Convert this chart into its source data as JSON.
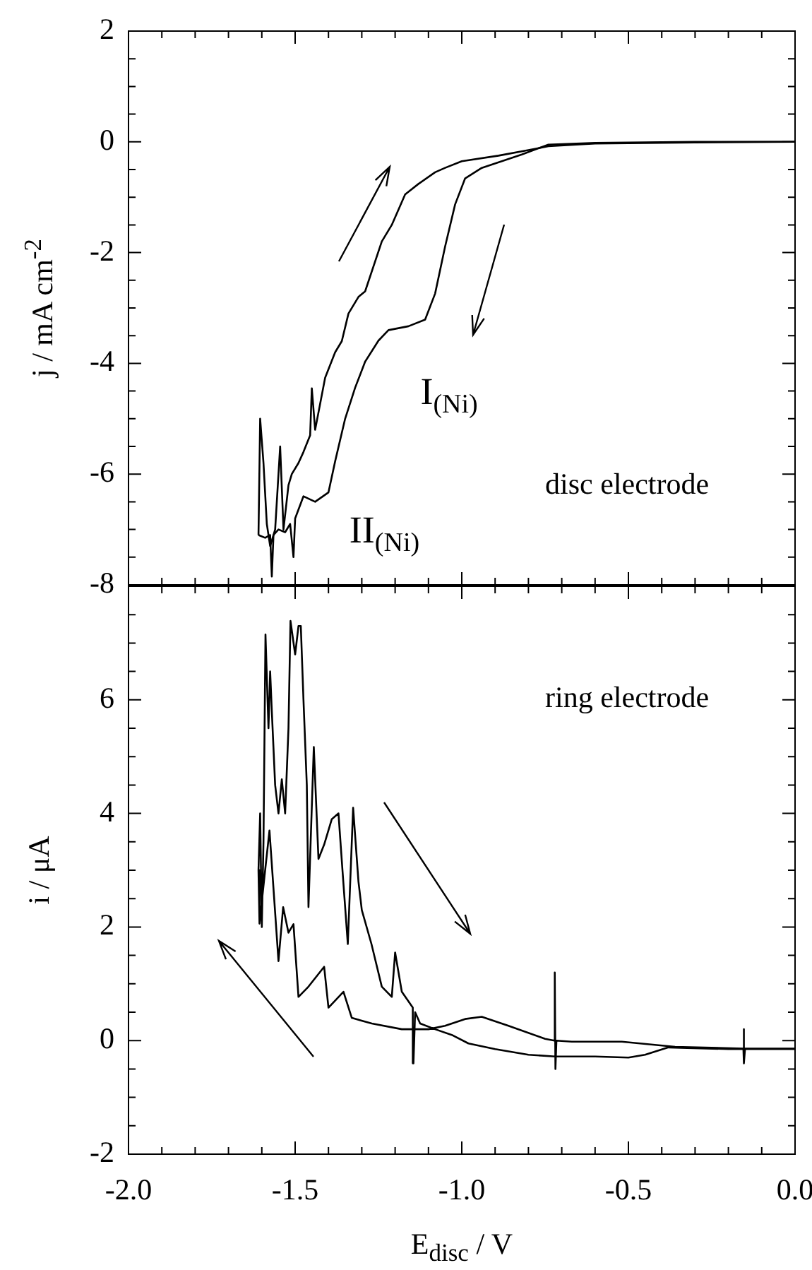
{
  "chart_data": [
    {
      "type": "line",
      "ylabel": "j / mA cm$^{-2}$",
      "tick_labels": "y",
      "xlim": [
        -2,
        0
      ],
      "ylim": [
        -8,
        2
      ],
      "yticks": [
        -8,
        {
          "value": -7.5,
          "label": null
        },
        {
          "value": -7,
          "label": null
        },
        {
          "value": -6.5,
          "label": null
        },
        -6,
        {
          "value": -5.5,
          "label": null
        },
        {
          "value": -5,
          "label": null
        },
        {
          "value": -4.5,
          "label": null
        },
        -4,
        {
          "value": -3.5,
          "label": null
        },
        {
          "value": -3,
          "label": null
        },
        {
          "value": -2.5,
          "label": null
        },
        -2,
        {
          "value": -1.5,
          "label": null
        },
        {
          "value": -1,
          "label": null
        },
        {
          "value": -0.5,
          "label": null
        },
        0,
        {
          "value": 0.5,
          "label": null
        },
        {
          "value": 1,
          "label": null
        },
        {
          "value": 1.5,
          "label": null
        },
        2
      ],
      "annotations": [
        "I$_{(Ni)}$",
        "II$_{(Ni)}$",
        "disc electrode"
      ],
      "series": [
        {
          "color": "#000000",
          "x": [
            0,
            -0.3,
            -0.6,
            -0.74,
            -0.82,
            -0.94,
            -0.99,
            -1.02,
            -1.05,
            -1.08,
            -1.11,
            -1.16,
            -1.22,
            -1.25,
            -1.29,
            -1.32,
            -1.35,
            -1.38,
            -1.4,
            -1.44,
            -1.475,
            -1.5,
            -1.505,
            -1.515,
            -1.53,
            -1.55,
            -1.565,
            -1.57,
            -1.575,
            -1.59,
            -1.61
          ],
          "values": [
            0,
            0,
            -0.02,
            -0.05,
            -0.23,
            -0.47,
            -0.66,
            -1.13,
            -1.89,
            -2.74,
            -3.21,
            -3.33,
            -3.4,
            -3.59,
            -3.97,
            -4.44,
            -5,
            -5.77,
            -6.33,
            -6.5,
            -6.4,
            -6.8,
            -7.5,
            -6.9,
            -7.05,
            -7,
            -7.1,
            -7.85,
            -7.1,
            -7.15,
            -7.1
          ]
        },
        {
          "color": "#000000",
          "x": [
            -1.61,
            -1.605,
            -1.595,
            -1.585,
            -1.575,
            -1.56,
            -1.545,
            -1.535,
            -1.52,
            -1.51,
            -1.49,
            -1.475,
            -1.455,
            -1.45,
            -1.44,
            -1.41,
            -1.38,
            -1.36,
            -1.34,
            -1.31,
            -1.29,
            -1.24,
            -1.21,
            -1.17,
            -1.13,
            -1.08,
            -1.05,
            -1,
            -0.89,
            -0.8,
            -0.74,
            -0.6,
            -0.3,
            0
          ],
          "values": [
            -7.1,
            -5,
            -5.8,
            -6.9,
            -7.3,
            -7,
            -5.5,
            -7,
            -6.2,
            -6,
            -5.8,
            -5.6,
            -5.3,
            -4.45,
            -5.2,
            -4.26,
            -3.8,
            -3.6,
            -3.1,
            -2.8,
            -2.7,
            -1.8,
            -1.5,
            -0.95,
            -0.76,
            -0.55,
            -0.47,
            -0.35,
            -0.25,
            -0.15,
            -0.08,
            -0.03,
            -0.01,
            0
          ]
        }
      ]
    },
    {
      "type": "line",
      "xlabel": "E$_{disc}$ / V",
      "ylabel": "i / μA",
      "xlim": [
        -2,
        0
      ],
      "xticks": [
        {
          "value": -2,
          "label": "-2.0"
        },
        {
          "value": -1.9,
          "label": null
        },
        {
          "value": -1.8,
          "label": null
        },
        {
          "value": -1.7,
          "label": null
        },
        {
          "value": -1.6,
          "label": null
        },
        {
          "value": -1.5,
          "label": "-1.5"
        },
        {
          "value": -1.4,
          "label": null
        },
        {
          "value": -1.3,
          "label": null
        },
        {
          "value": -1.2,
          "label": null
        },
        {
          "value": -1.1,
          "label": null
        },
        {
          "value": -1,
          "label": "-1.0"
        },
        {
          "value": -0.9,
          "label": null
        },
        {
          "value": -0.8,
          "label": null
        },
        {
          "value": -0.7,
          "label": null
        },
        {
          "value": -0.6,
          "label": null
        },
        {
          "value": -0.5,
          "label": "-0.5"
        },
        {
          "value": -0.4,
          "label": null
        },
        {
          "value": -0.3,
          "label": null
        },
        {
          "value": -0.2,
          "label": null
        },
        {
          "value": -0.1,
          "label": null
        },
        {
          "value": 0,
          "label": "0.0"
        }
      ],
      "ylim": [
        -2,
        8
      ],
      "yticks": [
        -2,
        {
          "value": -1.5,
          "label": null
        },
        {
          "value": -1,
          "label": null
        },
        {
          "value": -0.5,
          "label": null
        },
        0,
        {
          "value": 0.5,
          "label": null
        },
        {
          "value": 1,
          "label": null
        },
        {
          "value": 1.5,
          "label": null
        },
        2,
        {
          "value": 2.5,
          "label": null
        },
        {
          "value": 3,
          "label": null
        },
        {
          "value": 3.5,
          "label": null
        },
        4,
        {
          "value": 4.5,
          "label": null
        },
        {
          "value": 5,
          "label": null
        },
        {
          "value": 5.5,
          "label": null
        },
        6,
        {
          "value": 6.5,
          "label": null
        },
        {
          "value": 7,
          "label": null
        },
        {
          "value": 7.5,
          "label": null
        },
        {
          "value": 8,
          "label": null
        }
      ],
      "annotations": [
        "ring electrode"
      ],
      "series": [
        {
          "color": "#000000",
          "x": [
            0,
            -0.2,
            -0.38,
            -0.45,
            -0.5,
            -0.6,
            -0.72,
            -0.8,
            -0.9,
            -0.98,
            -1.03,
            -1.08,
            -1.125,
            -1.14,
            -1.145,
            -1.147,
            -1.18,
            -1.2,
            -1.21,
            -1.24,
            -1.271,
            -1.3,
            -1.31,
            -1.326,
            -1.342,
            -1.358,
            -1.37,
            -1.39,
            -1.413,
            -1.43,
            -1.444,
            -1.46,
            -1.465,
            -1.475,
            -1.483,
            -1.49,
            -1.5,
            -1.514,
            -1.52,
            -1.53,
            -1.54,
            -1.55,
            -1.56,
            -1.57,
            -1.575,
            -1.58,
            -1.589,
            -1.595,
            -1.6,
            -1.605,
            -1.61,
            -1.607,
            -1.59,
            -1.577,
            -1.55,
            -1.536,
            -1.52,
            -1.505,
            -1.49,
            -1.46,
            -1.413,
            -1.4,
            -1.355,
            -1.33,
            -1.27,
            -1.18,
            -1.1,
            -1.05,
            -0.99,
            -0.94,
            -0.86,
            -0.75,
            -0.722,
            -0.721,
            -0.719,
            -0.716,
            -0.67,
            -0.52,
            -0.36,
            -0.155,
            -0.154,
            -0.153,
            -0.15,
            0
          ],
          "values": [
            -0.15,
            -0.15,
            -0.12,
            -0.25,
            -0.3,
            -0.28,
            -0.28,
            -0.25,
            -0.15,
            -0.05,
            0.1,
            0.2,
            0.3,
            0.5,
            -0.4,
            0.58,
            0.86,
            1.55,
            0.77,
            0.95,
            1.7,
            2.3,
            2.8,
            4.1,
            1.7,
            3,
            4,
            3.9,
            3.45,
            3.2,
            5.17,
            2.35,
            4.5,
            6,
            7.3,
            7.3,
            6.8,
            7.39,
            5.5,
            4,
            4.6,
            4,
            4.5,
            5.8,
            6.5,
            5.5,
            7.15,
            3.5,
            2,
            4,
            3,
            2.06,
            3,
            3.7,
            1.4,
            2.35,
            1.9,
            2.05,
            0.77,
            0.95,
            1.3,
            0.58,
            0.86,
            0.4,
            0.3,
            0.2,
            0.2,
            0.26,
            0.38,
            0.42,
            0.26,
            0.03,
            0,
            1.2,
            -0.5,
            0,
            -0.02,
            -0.02,
            -0.11,
            -0.14,
            0.2,
            -0.4,
            -0.14,
            -0.14
          ]
        }
      ]
    }
  ]
}
